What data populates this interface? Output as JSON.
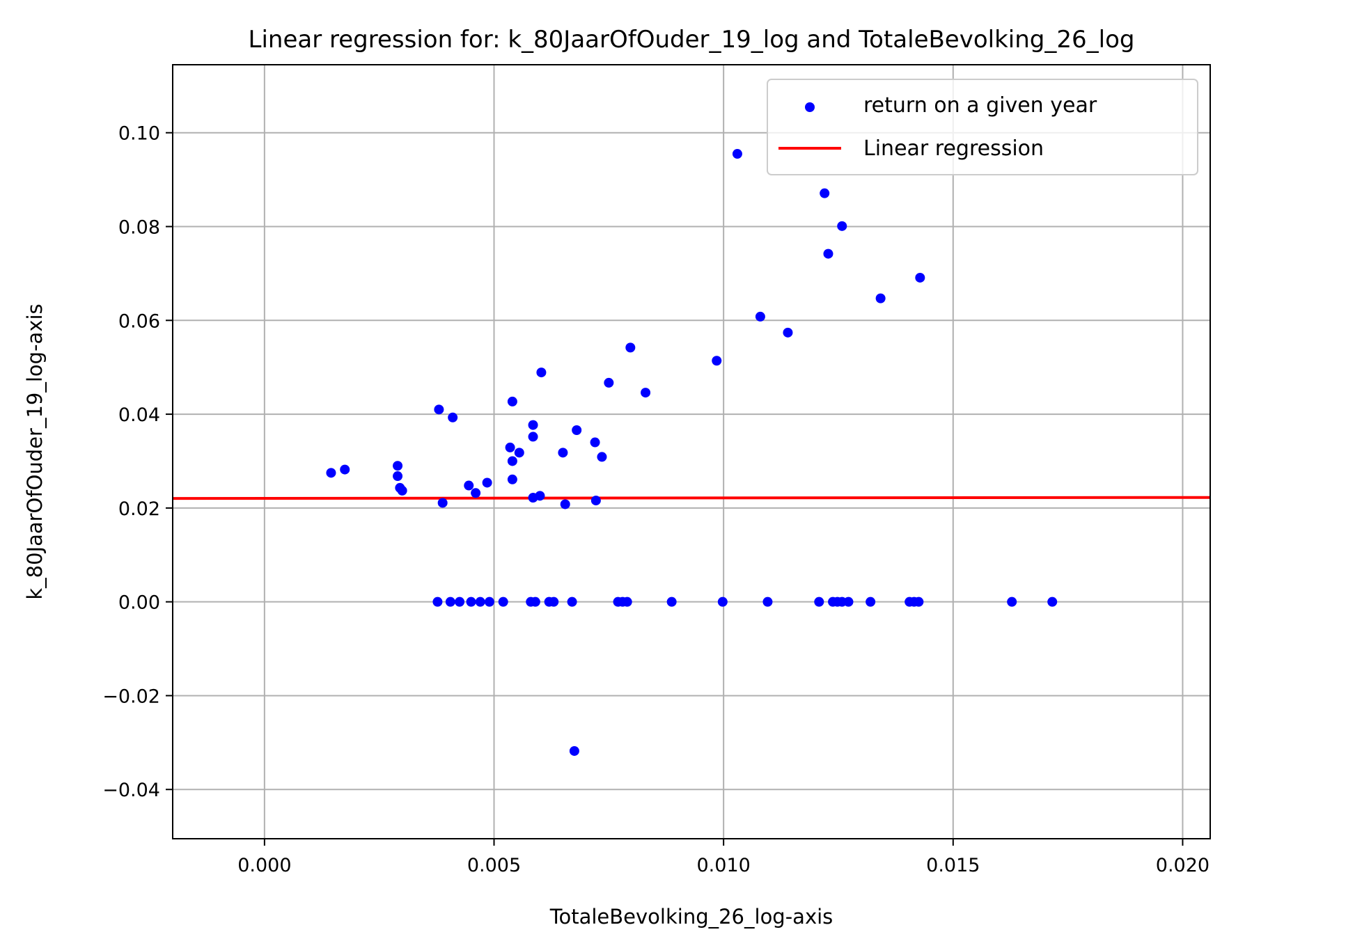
{
  "chart_data": {
    "type": "scatter",
    "title": "Linear regression for: k_80JaarOfOuder_19_log and TotaleBevolking_26_log",
    "xlabel": "TotaleBevolking_26_log-axis",
    "ylabel": "k_80JaarOfOuder_19_log-axis",
    "xlim": [
      -0.002,
      0.0206
    ],
    "ylim": [
      -0.0505,
      0.1145
    ],
    "xticks": [
      0.0,
      0.005,
      0.01,
      0.015,
      0.02
    ],
    "yticks": [
      -0.04,
      -0.02,
      0.0,
      0.02,
      0.04,
      0.06,
      0.08,
      0.1
    ],
    "xtick_labels": [
      "0.000",
      "0.005",
      "0.010",
      "0.015",
      "0.020"
    ],
    "ytick_labels": [
      "−0.04",
      "−0.02",
      "0.00",
      "0.02",
      "0.04",
      "0.06",
      "0.08",
      "0.10"
    ],
    "grid": true,
    "legend_position": "top-right",
    "series": [
      {
        "name": "return on a given year",
        "kind": "scatter",
        "color": "#0000ff",
        "points": [
          [
            0.00145,
            0.0275
          ],
          [
            0.00175,
            0.0282
          ],
          [
            0.0029,
            0.029
          ],
          [
            0.0029,
            0.0268
          ],
          [
            0.00295,
            0.0243
          ],
          [
            0.003,
            0.0237
          ],
          [
            0.0038,
            0.041
          ],
          [
            0.00388,
            0.0211
          ],
          [
            0.0041,
            0.0393
          ],
          [
            0.00445,
            0.0248
          ],
          [
            0.0046,
            0.0232
          ],
          [
            0.00485,
            0.0254
          ],
          [
            0.00535,
            0.0329
          ],
          [
            0.0054,
            0.0427
          ],
          [
            0.0054,
            0.03
          ],
          [
            0.0054,
            0.0261
          ],
          [
            0.00555,
            0.0318
          ],
          [
            0.00585,
            0.0377
          ],
          [
            0.00585,
            0.0352
          ],
          [
            0.00585,
            0.0222
          ],
          [
            0.006,
            0.0226
          ],
          [
            0.00603,
            0.0489
          ],
          [
            0.0065,
            0.0318
          ],
          [
            0.00655,
            0.0208
          ],
          [
            0.0068,
            0.0366
          ],
          [
            0.0072,
            0.034
          ],
          [
            0.00722,
            0.0216
          ],
          [
            0.00735,
            0.0309
          ],
          [
            0.0075,
            0.0467
          ],
          [
            0.00797,
            0.0542
          ],
          [
            0.0083,
            0.0446
          ],
          [
            0.00985,
            0.0514
          ],
          [
            0.0103,
            0.0955
          ],
          [
            0.0108,
            0.0608
          ],
          [
            0.0114,
            0.0574
          ],
          [
            0.0122,
            0.0871
          ],
          [
            0.01228,
            0.0742
          ],
          [
            0.01258,
            0.0801
          ],
          [
            0.01342,
            0.0647
          ],
          [
            0.01428,
            0.0691
          ],
          [
            0.00377,
            0.0
          ],
          [
            0.00405,
            0.0
          ],
          [
            0.00425,
            0.0
          ],
          [
            0.0045,
            0.0
          ],
          [
            0.0047,
            0.0
          ],
          [
            0.0049,
            0.0
          ],
          [
            0.0052,
            0.0
          ],
          [
            0.0058,
            0.0
          ],
          [
            0.0059,
            0.0
          ],
          [
            0.0062,
            0.0
          ],
          [
            0.0063,
            0.0
          ],
          [
            0.0067,
            0.0
          ],
          [
            0.0077,
            0.0
          ],
          [
            0.0078,
            0.0
          ],
          [
            0.0079,
            0.0
          ],
          [
            0.00887,
            0.0
          ],
          [
            0.00998,
            0.0
          ],
          [
            0.01096,
            0.0
          ],
          [
            0.01208,
            0.0
          ],
          [
            0.01238,
            0.0
          ],
          [
            0.01248,
            0.0
          ],
          [
            0.01258,
            0.0
          ],
          [
            0.01272,
            0.0
          ],
          [
            0.0132,
            0.0
          ],
          [
            0.01405,
            0.0
          ],
          [
            0.01415,
            0.0
          ],
          [
            0.01425,
            0.0
          ],
          [
            0.01628,
            0.0
          ],
          [
            0.01716,
            0.0
          ],
          [
            0.00675,
            -0.0318
          ]
        ]
      },
      {
        "name": "Linear regression",
        "kind": "line",
        "color": "#ff0000",
        "points": [
          [
            -0.002,
            0.02205
          ],
          [
            0.0206,
            0.02225
          ]
        ]
      }
    ]
  }
}
